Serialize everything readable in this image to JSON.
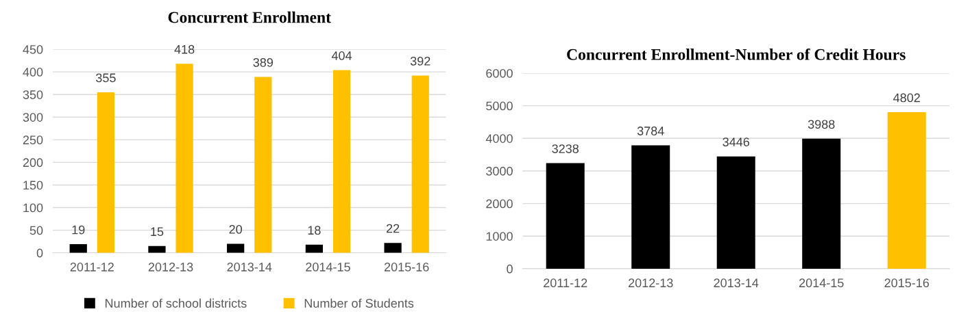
{
  "chart_data": [
    {
      "type": "bar",
      "title": "Concurrent Enrollment",
      "categories": [
        "2011-12",
        "2012-13",
        "2013-14",
        "2014-15",
        "2015-16"
      ],
      "series": [
        {
          "name": "Number of school districts",
          "color": "#000000",
          "values": [
            19,
            15,
            20,
            18,
            22
          ]
        },
        {
          "name": "Number of Students",
          "color": "#ffc000",
          "values": [
            355,
            418,
            389,
            404,
            392
          ]
        }
      ],
      "ylim": [
        0,
        450
      ],
      "yticks": [
        0,
        50,
        100,
        150,
        200,
        250,
        300,
        350,
        400,
        450
      ],
      "grid": "y",
      "legend": "bottom",
      "data_labels": true
    },
    {
      "type": "bar",
      "title": "Concurrent Enrollment-Number of Credit Hours",
      "categories": [
        "2011-12",
        "2012-13",
        "2013-14",
        "2014-15",
        "2015-16"
      ],
      "values": [
        3238,
        3784,
        3446,
        3988,
        4802
      ],
      "colors": [
        "#000000",
        "#000000",
        "#000000",
        "#000000",
        "#ffc000"
      ],
      "ylim": [
        0,
        6000
      ],
      "yticks": [
        0,
        1000,
        2000,
        3000,
        4000,
        5000,
        6000
      ],
      "grid": "y",
      "data_labels": true
    }
  ]
}
